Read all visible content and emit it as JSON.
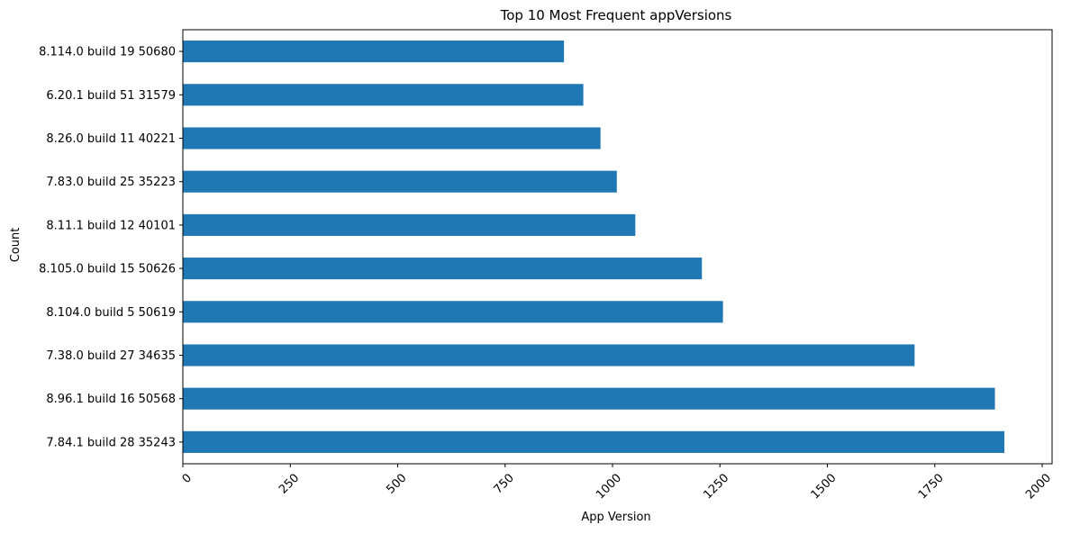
{
  "chart_data": {
    "type": "bar",
    "orientation": "horizontal",
    "title": "Top 10 Most Frequent appVersions",
    "xlabel": "App Version",
    "ylabel": "Count",
    "categories": [
      "7.84.1 build 28 35243",
      "8.96.1 build 16 50568",
      "7.38.0 build 27 34635",
      "8.104.0 build 5 50619",
      "8.105.0 build 15 50626",
      "8.11.1 build 12 40101",
      "7.83.0 build 25 35223",
      "8.26.0 build 11 40221",
      "6.20.1 build 51 31579",
      "8.114.0 build 19 50680"
    ],
    "values": [
      1912,
      1890,
      1703,
      1257,
      1208,
      1053,
      1010,
      972,
      932,
      887
    ],
    "xlim": [
      0,
      2023
    ],
    "xticks": [
      "0",
      "250",
      "500",
      "750",
      "1000",
      "1250",
      "1500",
      "1750",
      "2000"
    ],
    "xtick_rotation": 45,
    "grid": false,
    "bar_color": "#1f77b4"
  }
}
